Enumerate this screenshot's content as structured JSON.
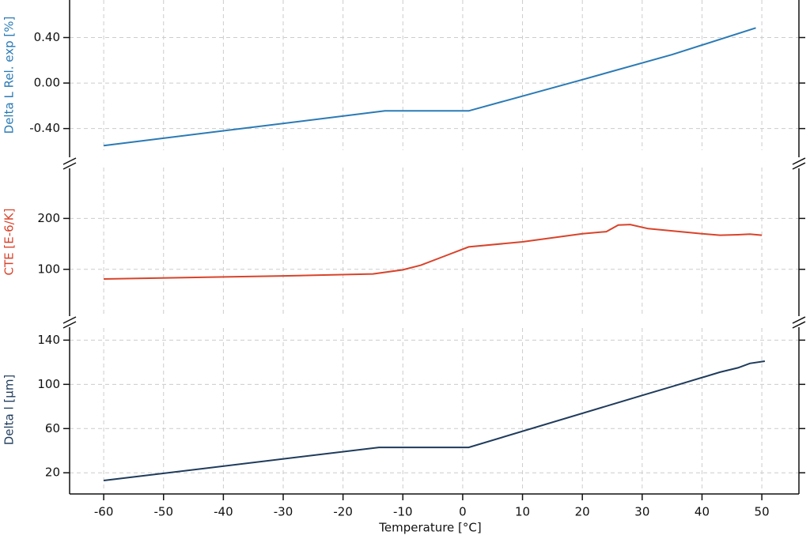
{
  "chart_data": [
    {
      "type": "line",
      "ylabel": "Delta L Rel. exp [%]",
      "color": "#2a7ab5",
      "x": [
        -60,
        -13,
        1,
        20,
        35,
        49
      ],
      "values": [
        -0.55,
        -0.245,
        -0.245,
        0.03,
        0.25,
        0.485
      ],
      "xlim": [
        -65.7,
        56.2
      ],
      "ylim": [
        -0.59,
        0.73
      ],
      "yticks": [
        {
          "value": 0.4,
          "label": "0.40"
        },
        {
          "value": 0,
          "label": "0.00"
        },
        {
          "value": -0.4,
          "label": "-0.40"
        }
      ],
      "grid": true
    },
    {
      "type": "line",
      "ylabel": "CTE [E-6/K]",
      "color": "#d9432a",
      "x": [
        -60,
        -30,
        -15,
        -10,
        -7,
        -3,
        1,
        10,
        20,
        24,
        26,
        28,
        31,
        40,
        43,
        46,
        48,
        50
      ],
      "values": [
        81,
        87,
        91,
        99,
        108,
        126,
        144,
        154,
        170,
        174,
        187,
        188,
        180,
        170,
        167,
        168,
        169,
        167
      ],
      "xlim": [
        -65.7,
        56.2
      ],
      "ylim": [
        8,
        300
      ],
      "yticks": [
        100,
        200
      ],
      "grid": true
    },
    {
      "type": "line",
      "ylabel": "Delta l [µm]",
      "xlabel": "Temperature [°C]",
      "color": "#1f3b5c",
      "x": [
        -60,
        -14,
        1,
        30,
        35,
        43,
        46,
        48,
        50.5
      ],
      "values": [
        13,
        43,
        43,
        90,
        98,
        111,
        115,
        119,
        121
      ],
      "xlim": [
        -65.7,
        56.2
      ],
      "ylim": [
        3,
        151
      ],
      "yticks": [
        20,
        60,
        100,
        140
      ],
      "xticks": [
        -60,
        -50,
        -40,
        -30,
        -20,
        -10,
        0,
        10,
        20,
        30,
        40,
        50
      ],
      "grid": true
    }
  ]
}
